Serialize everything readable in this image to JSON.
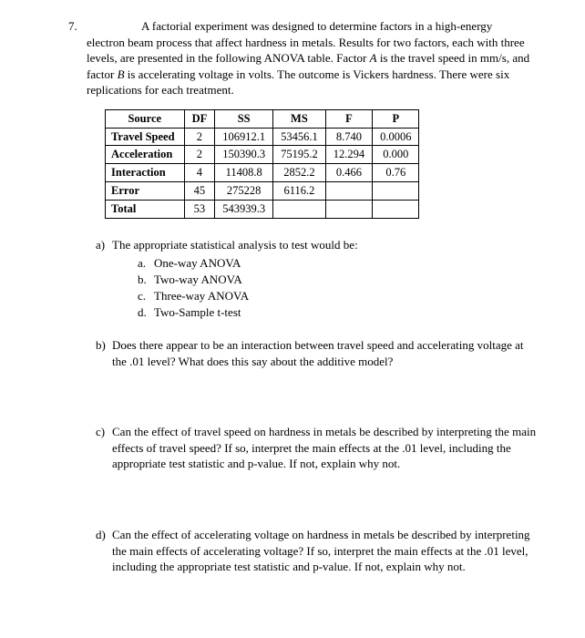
{
  "question_number": "7.",
  "intro": "A factorial experiment was designed to determine factors in a high-energy electron beam process that affect hardness in metals. Results for two factors, each with three levels, are presented in the following ANOVA table. Factor A is the travel speed in mm/s, and factor B is accelerating voltage in volts. The outcome is Vickers hardness. There were six replications for each treatment.",
  "table": {
    "headers": [
      "Source",
      "DF",
      "SS",
      "MS",
      "F",
      "P"
    ],
    "rows": [
      [
        "Travel Speed",
        "2",
        "106912.1",
        "53456.1",
        "8.740",
        "0.0006"
      ],
      [
        "Acceleration",
        "2",
        "150390.3",
        "75195.2",
        "12.294",
        "0.000"
      ],
      [
        "Interaction",
        "4",
        "11408.8",
        "2852.2",
        "0.466",
        "0.76"
      ],
      [
        "Error",
        "45",
        "275228",
        "6116.2",
        "",
        ""
      ],
      [
        "Total",
        "53",
        "543939.3",
        "",
        "",
        ""
      ]
    ]
  },
  "parts": {
    "a": {
      "label": "a)",
      "text": "The appropriate statistical analysis to test would be:",
      "options": [
        {
          "label": "a.",
          "text": "One-way ANOVA"
        },
        {
          "label": "b.",
          "text": "Two-way ANOVA"
        },
        {
          "label": "c.",
          "text": "Three-way ANOVA"
        },
        {
          "label": "d.",
          "text": "Two-Sample t-test"
        }
      ]
    },
    "b": {
      "label": "b)",
      "text": "Does there appear to be an interaction between travel speed and accelerating voltage at the .01 level?  What does this say about the additive model?"
    },
    "c": {
      "label": "c)",
      "text": "Can the effect of travel speed on hardness in metals be described by interpreting the main effects of travel speed?  If so, interpret the main effects at the .01 level, including the appropriate test statistic and p-value.  If not, explain why not."
    },
    "d": {
      "label": "d)",
      "text": "Can the effect of accelerating voltage on hardness in metals be described by interpreting the main effects of accelerating voltage?  If so, interpret the main effects at the .01 level, including the appropriate test statistic and p-value.  If not, explain why not."
    }
  }
}
